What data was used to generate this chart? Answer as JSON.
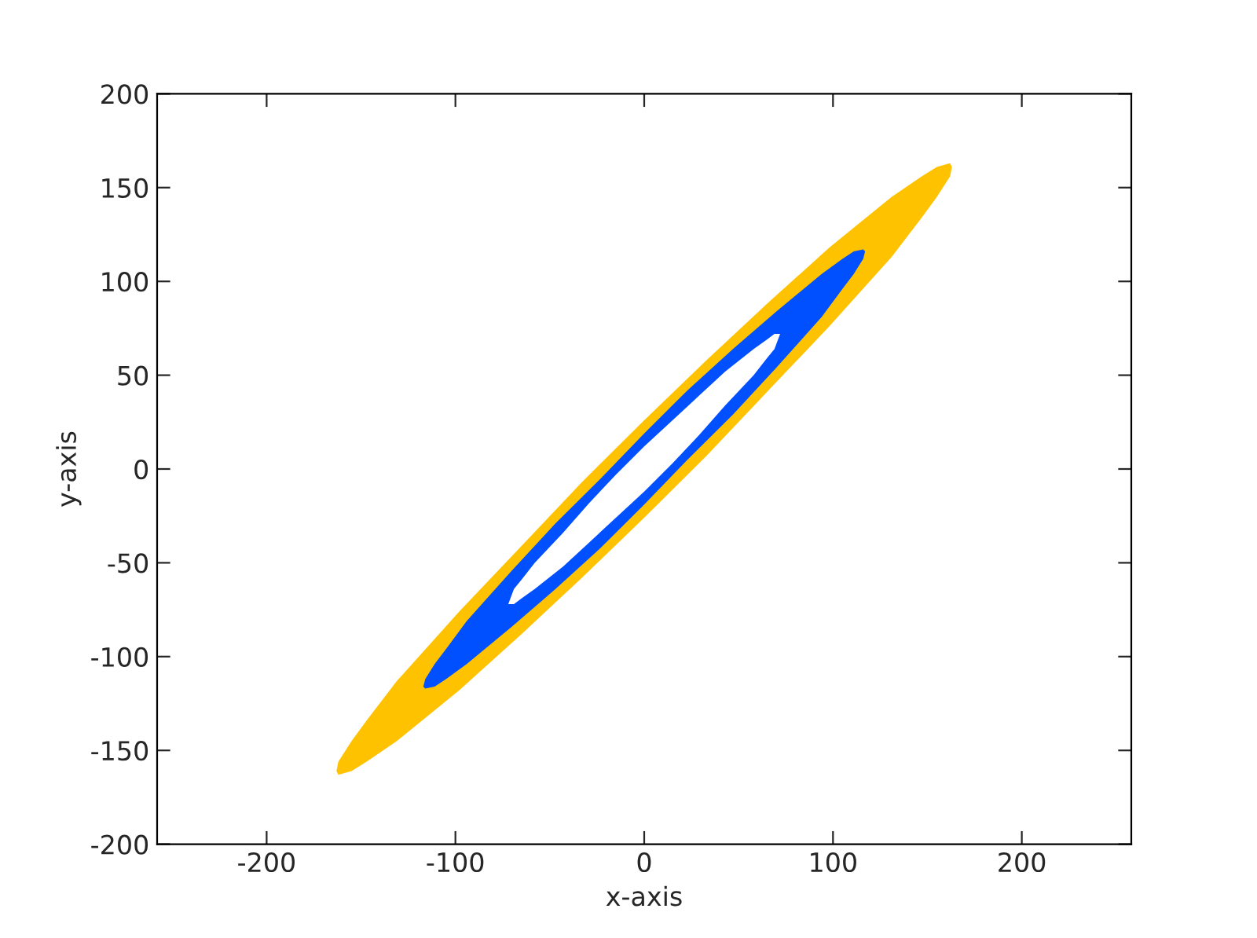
{
  "chart_data": {
    "type": "area",
    "xlabel": "x-axis",
    "ylabel": "y-axis",
    "xlim": [
      -258,
      258
    ],
    "ylim": [
      -200,
      200
    ],
    "xticks": [
      -200,
      -100,
      0,
      100,
      200
    ],
    "yticks": [
      -200,
      -150,
      -100,
      -50,
      0,
      50,
      100,
      150,
      200
    ],
    "grid": false,
    "legend": false,
    "series": [
      {
        "color": "#ffc200",
        "x": [
          -163,
          -162,
          -155,
          -147,
          -131,
          -98,
          -65,
          -33,
          0,
          33,
          65,
          98,
          131,
          147,
          155,
          162,
          163,
          162,
          155,
          147,
          131,
          98,
          65,
          33,
          0,
          -33,
          -65,
          -98,
          -131,
          -147,
          -155,
          -162
        ],
        "values": [
          -161,
          -156,
          -145,
          -134,
          -113,
          -76,
          -41,
          -7,
          26,
          58,
          88,
          118,
          145,
          156,
          161,
          163,
          161,
          156,
          145,
          134,
          113,
          76,
          41,
          7,
          -26,
          -58,
          -88,
          -118,
          -145,
          -156,
          -161,
          -163
        ]
      },
      {
        "color": "#0050ff",
        "x": [
          -117,
          -116,
          -111,
          -105,
          -94,
          -70,
          -47,
          -23,
          0,
          23,
          47,
          70,
          94,
          105,
          111,
          116,
          117,
          116,
          111,
          105,
          94,
          70,
          47,
          23,
          0,
          -23,
          -47,
          -70,
          -94,
          -105,
          -111,
          -116
        ],
        "values": [
          -116,
          -112,
          -104,
          -96,
          -81,
          -54,
          -29,
          -5,
          19,
          42,
          64,
          84,
          104,
          112,
          116,
          117,
          116,
          112,
          104,
          96,
          81,
          54,
          29,
          5,
          -19,
          -42,
          -64,
          -84,
          -104,
          -112,
          -116,
          -117
        ]
      },
      {
        "color": "#ffffff",
        "x": [
          -72,
          -69,
          -65,
          -58,
          -43,
          -29,
          -15,
          0,
          15,
          29,
          43,
          58,
          65,
          69,
          72,
          69,
          65,
          58,
          43,
          29,
          15,
          0,
          -15,
          -29,
          -43,
          -58,
          -65,
          -69
        ],
        "values": [
          -72,
          -64,
          -59,
          -50,
          -34,
          -18,
          -3,
          12,
          26,
          39,
          52,
          64,
          69,
          72,
          72,
          64,
          59,
          50,
          34,
          18,
          3,
          -12,
          -26,
          -39,
          -52,
          -64,
          -69,
          -72
        ]
      }
    ]
  }
}
